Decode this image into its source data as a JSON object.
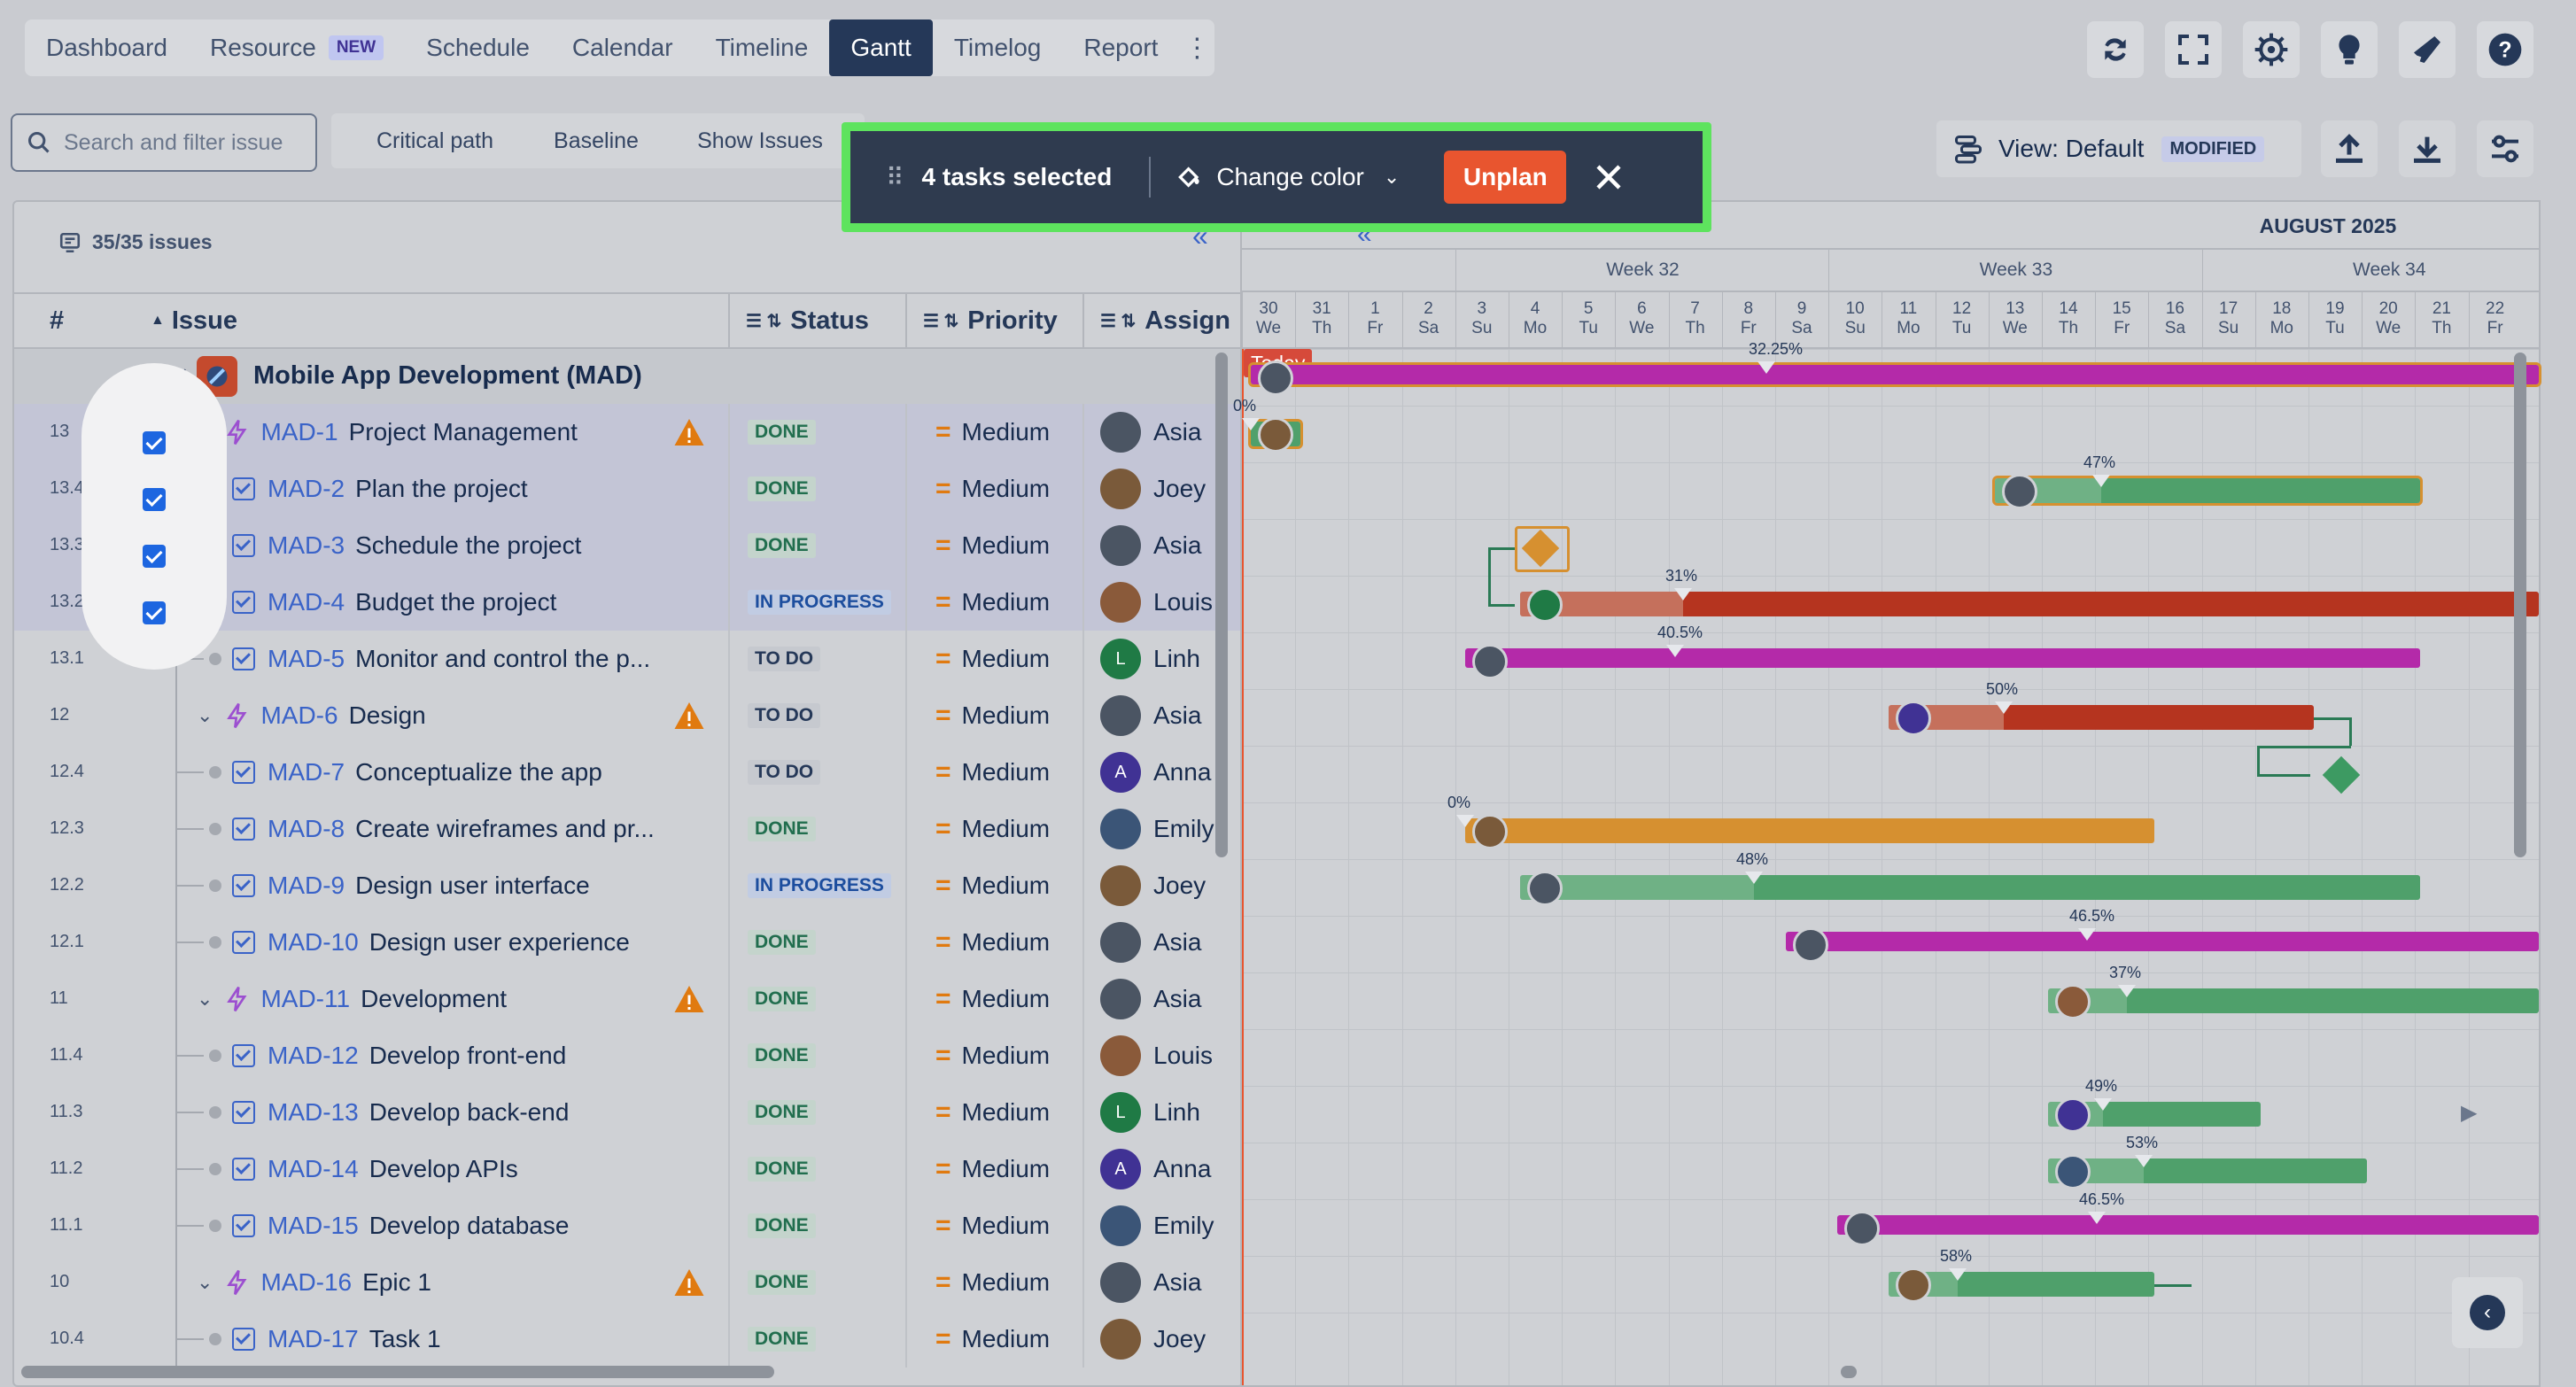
{
  "nav": {
    "items": [
      "Dashboard",
      "Resource",
      "Schedule",
      "Calendar",
      "Timeline",
      "Gantt",
      "Timelog",
      "Report"
    ],
    "resource_badge": "NEW",
    "active": "Gantt"
  },
  "toolbar": {
    "search_placeholder": "Search and filter issue",
    "critical_path": "Critical path",
    "baseline": "Baseline",
    "show_issues": "Show Issues",
    "view_label": "View: Default",
    "view_badge": "MODIFIED"
  },
  "selection_bar": {
    "count_text": "4 tasks selected",
    "change_color": "Change color",
    "unplan": "Unplan"
  },
  "issues_panel": {
    "count": "35/35 issues",
    "columns": [
      "#",
      "Issue",
      "Status",
      "Priority",
      "Assign"
    ],
    "project": "Mobile App Development  (MAD)"
  },
  "rows": [
    {
      "num": "13",
      "key": "MAD-1",
      "title": "Project Management",
      "status": "DONE",
      "priority": "Medium",
      "assignee": "Asia",
      "epic": true,
      "checked": true
    },
    {
      "num": "13.4",
      "key": "MAD-2",
      "title": "Plan the project",
      "status": "DONE",
      "priority": "Medium",
      "assignee": "Joey",
      "epic": false,
      "checked": true
    },
    {
      "num": "13.3",
      "key": "MAD-3",
      "title": "Schedule the project",
      "status": "DONE",
      "priority": "Medium",
      "assignee": "Asia",
      "epic": false,
      "checked": true
    },
    {
      "num": "13.2",
      "key": "MAD-4",
      "title": "Budget the project",
      "status": "IN PROGRESS",
      "priority": "Medium",
      "assignee": "Louis",
      "epic": false,
      "checked": true
    },
    {
      "num": "13.1",
      "key": "MAD-5",
      "title": "Monitor and control the p...",
      "status": "TO DO",
      "priority": "Medium",
      "assignee": "Linh",
      "epic": false,
      "checked": false
    },
    {
      "num": "12",
      "key": "MAD-6",
      "title": "Design",
      "status": "TO DO",
      "priority": "Medium",
      "assignee": "Asia",
      "epic": true,
      "checked": false
    },
    {
      "num": "12.4",
      "key": "MAD-7",
      "title": "Conceptualize the app",
      "status": "TO DO",
      "priority": "Medium",
      "assignee": "Anna",
      "epic": false,
      "checked": false
    },
    {
      "num": "12.3",
      "key": "MAD-8",
      "title": "Create wireframes and pr...",
      "status": "DONE",
      "priority": "Medium",
      "assignee": "Emily",
      "epic": false,
      "checked": false
    },
    {
      "num": "12.2",
      "key": "MAD-9",
      "title": "Design user interface",
      "status": "IN PROGRESS",
      "priority": "Medium",
      "assignee": "Joey",
      "epic": false,
      "checked": false
    },
    {
      "num": "12.1",
      "key": "MAD-10",
      "title": "Design user experience",
      "status": "DONE",
      "priority": "Medium",
      "assignee": "Asia",
      "epic": false,
      "checked": false
    },
    {
      "num": "11",
      "key": "MAD-11",
      "title": "Development",
      "status": "DONE",
      "priority": "Medium",
      "assignee": "Asia",
      "epic": true,
      "checked": false
    },
    {
      "num": "11.4",
      "key": "MAD-12",
      "title": "Develop front-end",
      "status": "DONE",
      "priority": "Medium",
      "assignee": "Louis",
      "epic": false,
      "checked": false
    },
    {
      "num": "11.3",
      "key": "MAD-13",
      "title": "Develop back-end",
      "status": "DONE",
      "priority": "Medium",
      "assignee": "Linh",
      "epic": false,
      "checked": false
    },
    {
      "num": "11.2",
      "key": "MAD-14",
      "title": "Develop APIs",
      "status": "DONE",
      "priority": "Medium",
      "assignee": "Anna",
      "epic": false,
      "checked": false
    },
    {
      "num": "11.1",
      "key": "MAD-15",
      "title": "Develop database",
      "status": "DONE",
      "priority": "Medium",
      "assignee": "Emily",
      "epic": false,
      "checked": false
    },
    {
      "num": "10",
      "key": "MAD-16",
      "title": "Epic 1",
      "status": "DONE",
      "priority": "Medium",
      "assignee": "Asia",
      "epic": true,
      "checked": false
    },
    {
      "num": "10.4",
      "key": "MAD-17",
      "title": "Task 1",
      "status": "DONE",
      "priority": "Medium",
      "assignee": "Joey",
      "epic": false,
      "checked": false
    }
  ],
  "gantt": {
    "month": "AUGUST 2025",
    "weeks": [
      "Week 32",
      "Week 33",
      "Week 34"
    ],
    "days": [
      {
        "n": "30",
        "d": "We"
      },
      {
        "n": "31",
        "d": "Th"
      },
      {
        "n": "1",
        "d": "Fr"
      },
      {
        "n": "2",
        "d": "Sa"
      },
      {
        "n": "3",
        "d": "Su"
      },
      {
        "n": "4",
        "d": "Mo"
      },
      {
        "n": "5",
        "d": "Tu"
      },
      {
        "n": "6",
        "d": "We"
      },
      {
        "n": "7",
        "d": "Th"
      },
      {
        "n": "8",
        "d": "Fr"
      },
      {
        "n": "9",
        "d": "Sa"
      },
      {
        "n": "10",
        "d": "Su"
      },
      {
        "n": "11",
        "d": "Mo"
      },
      {
        "n": "12",
        "d": "Tu"
      },
      {
        "n": "13",
        "d": "We"
      },
      {
        "n": "14",
        "d": "Th"
      },
      {
        "n": "15",
        "d": "Fr"
      },
      {
        "n": "16",
        "d": "Sa"
      },
      {
        "n": "17",
        "d": "Su"
      },
      {
        "n": "18",
        "d": "Mo"
      },
      {
        "n": "19",
        "d": "Tu"
      },
      {
        "n": "20",
        "d": "We"
      },
      {
        "n": "21",
        "d": "Th"
      },
      {
        "n": "22",
        "d": "Fr"
      }
    ],
    "today_label": "Today",
    "progress": [
      "32.25%",
      "0%",
      "47%",
      "31%",
      "40.5%",
      "50%",
      "0%",
      "48%",
      "46.5%",
      "37%",
      "49%",
      "53%",
      "46.5%",
      "58%"
    ]
  },
  "colors": {
    "epic": "#b42aa9",
    "done": "#4fa06b",
    "progress_red": "#b5341f",
    "orange": "#d69030",
    "selection_border": "#5ee35e",
    "unplan": "#e8552f"
  }
}
